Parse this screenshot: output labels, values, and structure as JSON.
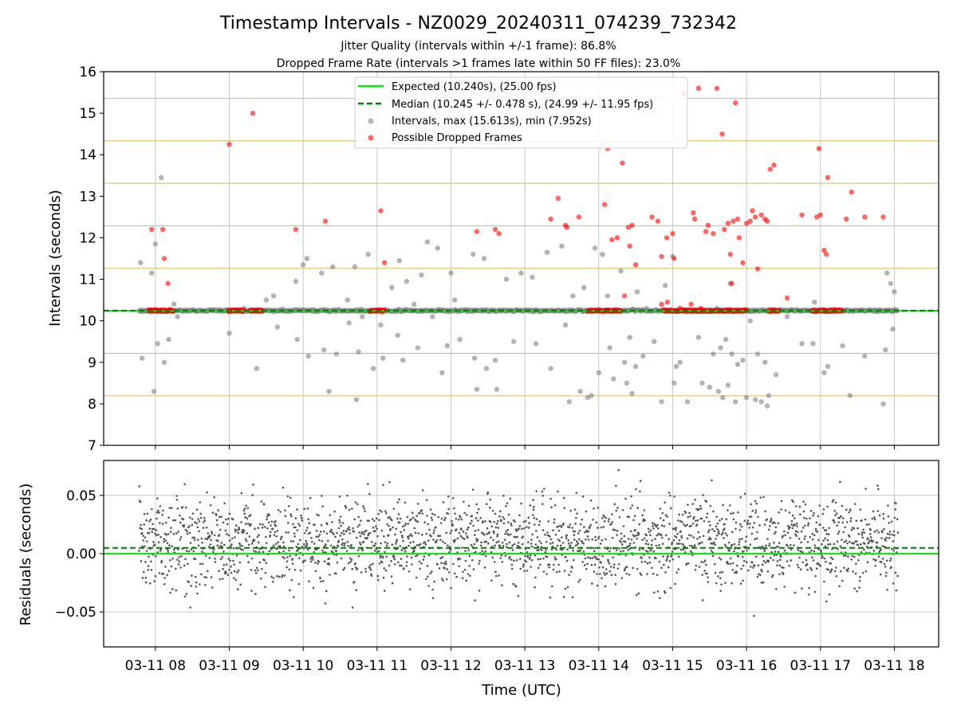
{
  "figure": {
    "title": "Timestamp Intervals - NZ0029_20240311_074239_732342",
    "subtitle_line1": "Jitter Quality (intervals within +/-1 frame): 86.8%",
    "subtitle_line2": "Dropped Frame Rate (intervals >1 frames late within 50 FF files): 23.0%"
  },
  "colors": {
    "expected_line": "#00ee00",
    "median_line": "#007f00",
    "interval_points": "#808080",
    "dropped_points": "#ff0000",
    "frame_lines": "#d4b86a",
    "residual_points": "#555555",
    "grid": "#c8c8c8"
  },
  "chart_data": [
    {
      "type": "scatter",
      "ylabel": "Intervals (seconds)",
      "ylim": [
        7,
        16
      ],
      "yticks": [
        7,
        8,
        9,
        10,
        11,
        12,
        13,
        14,
        15,
        16
      ],
      "xlim_hours": [
        7.3,
        18.6
      ],
      "xticks_hours": [
        8,
        9,
        10,
        11,
        12,
        13,
        14,
        15,
        16,
        17,
        18
      ],
      "xtick_labels": [
        "03-11 08",
        "03-11 09",
        "03-11 10",
        "03-11 11",
        "03-11 12",
        "03-11 13",
        "03-11 14",
        "03-11 15",
        "03-11 16",
        "03-11 17",
        "03-11 18"
      ],
      "frame_multiple_lines": [
        8.192,
        9.216,
        10.24,
        11.264,
        12.288,
        13.312,
        14.336,
        15.36
      ],
      "expected_value": 10.24,
      "median_value": 10.245,
      "legend_position": "upper-center",
      "legend": [
        "Expected (10.240s), (25.00 fps)",
        "Median (10.245 +/- 0.478 s), (24.99 +/- 11.95 fps)",
        "Intervals, max (15.613s), min (7.952s)",
        "Possible Dropped Frames"
      ],
      "intervals_range_hours": [
        7.78,
        18.05
      ],
      "dropped_clusters_hours": [
        [
          7.9,
          8.25
        ],
        [
          8.98,
          9.2
        ],
        [
          9.28,
          9.45
        ],
        [
          10.9,
          11.1
        ],
        [
          13.85,
          14.3
        ],
        [
          14.88,
          16.0
        ],
        [
          16.3,
          16.45
        ],
        [
          16.88,
          17.3
        ]
      ],
      "dropped_outliers": [
        [
          7.95,
          12.2
        ],
        [
          8.1,
          12.2
        ],
        [
          8.12,
          11.5
        ],
        [
          8.17,
          10.9
        ],
        [
          9.0,
          14.25
        ],
        [
          9.32,
          15.0
        ],
        [
          9.9,
          12.2
        ],
        [
          10.3,
          12.4
        ],
        [
          11.05,
          12.65
        ],
        [
          11.1,
          11.4
        ],
        [
          12.35,
          12.15
        ],
        [
          12.6,
          12.2
        ],
        [
          12.65,
          12.1
        ],
        [
          13.35,
          12.45
        ],
        [
          13.45,
          12.95
        ],
        [
          13.55,
          12.3
        ],
        [
          13.57,
          12.25
        ],
        [
          13.73,
          12.5
        ],
        [
          14.08,
          12.8
        ],
        [
          14.12,
          14.15
        ],
        [
          14.18,
          11.95
        ],
        [
          14.25,
          12.0
        ],
        [
          14.32,
          13.8
        ],
        [
          14.35,
          10.6
        ],
        [
          14.4,
          12.25
        ],
        [
          14.45,
          12.3
        ],
        [
          14.42,
          11.8
        ],
        [
          14.5,
          11.35
        ],
        [
          14.72,
          12.5
        ],
        [
          14.8,
          12.4
        ],
        [
          14.85,
          11.55
        ],
        [
          14.92,
          12.0
        ],
        [
          15.0,
          12.1
        ],
        [
          15.02,
          11.5
        ],
        [
          14.93,
          10.45
        ],
        [
          14.85,
          10.4
        ],
        [
          15.15,
          15.48
        ],
        [
          15.28,
          12.6
        ],
        [
          15.3,
          12.45
        ],
        [
          15.35,
          15.6
        ],
        [
          15.45,
          12.15
        ],
        [
          15.48,
          12.3
        ],
        [
          15.55,
          12.1
        ],
        [
          15.6,
          15.6
        ],
        [
          15.67,
          14.5
        ],
        [
          15.7,
          12.2
        ],
        [
          15.75,
          12.35
        ],
        [
          15.78,
          11.6
        ],
        [
          15.8,
          10.9
        ],
        [
          15.82,
          12.4
        ],
        [
          15.85,
          15.25
        ],
        [
          15.88,
          12.45
        ],
        [
          15.9,
          12.0
        ],
        [
          15.95,
          11.4
        ],
        [
          16.0,
          12.35
        ],
        [
          16.05,
          12.4
        ],
        [
          16.08,
          12.65
        ],
        [
          16.12,
          12.5
        ],
        [
          16.15,
          11.25
        ],
        [
          16.2,
          12.55
        ],
        [
          16.25,
          12.45
        ],
        [
          16.28,
          12.4
        ],
        [
          16.32,
          13.65
        ],
        [
          16.37,
          13.75
        ],
        [
          16.55,
          10.55
        ],
        [
          16.75,
          12.55
        ],
        [
          16.95,
          12.5
        ],
        [
          16.98,
          14.15
        ],
        [
          17.0,
          12.55
        ],
        [
          17.05,
          11.7
        ],
        [
          17.08,
          11.6
        ],
        [
          17.1,
          13.45
        ],
        [
          17.35,
          12.45
        ],
        [
          17.42,
          13.1
        ],
        [
          17.6,
          12.5
        ],
        [
          17.85,
          12.5
        ],
        [
          15.1,
          10.3
        ],
        [
          15.25,
          10.4
        ],
        [
          15.38,
          10.3
        ]
      ],
      "interval_outliers": [
        [
          7.8,
          11.4
        ],
        [
          7.82,
          9.1
        ],
        [
          7.95,
          11.15
        ],
        [
          7.98,
          8.3
        ],
        [
          8.0,
          11.85
        ],
        [
          8.03,
          9.45
        ],
        [
          8.08,
          13.45
        ],
        [
          8.12,
          9.0
        ],
        [
          8.18,
          9.55
        ],
        [
          8.25,
          10.4
        ],
        [
          8.3,
          10.1
        ],
        [
          9.0,
          9.7
        ],
        [
          9.2,
          10.3
        ],
        [
          9.5,
          10.5
        ],
        [
          9.6,
          10.6
        ],
        [
          9.65,
          9.85
        ],
        [
          9.37,
          8.85
        ],
        [
          9.9,
          10.95
        ],
        [
          9.92,
          9.55
        ],
        [
          10.0,
          11.35
        ],
        [
          10.05,
          11.5
        ],
        [
          10.07,
          9.15
        ],
        [
          10.25,
          11.15
        ],
        [
          10.28,
          9.3
        ],
        [
          10.35,
          8.3
        ],
        [
          10.4,
          11.3
        ],
        [
          10.45,
          9.2
        ],
        [
          10.6,
          10.5
        ],
        [
          10.62,
          9.95
        ],
        [
          10.7,
          11.3
        ],
        [
          10.72,
          8.1
        ],
        [
          10.75,
          9.25
        ],
        [
          10.8,
          10.1
        ],
        [
          10.88,
          11.6
        ],
        [
          10.95,
          8.85
        ],
        [
          11.05,
          9.9
        ],
        [
          11.08,
          9.1
        ],
        [
          11.2,
          10.8
        ],
        [
          11.3,
          11.45
        ],
        [
          11.35,
          9.05
        ],
        [
          11.28,
          9.65
        ],
        [
          11.4,
          10.95
        ],
        [
          11.5,
          10.4
        ],
        [
          11.55,
          9.35
        ],
        [
          11.6,
          11.1
        ],
        [
          11.68,
          11.9
        ],
        [
          11.75,
          10.1
        ],
        [
          11.82,
          11.75
        ],
        [
          11.88,
          8.75
        ],
        [
          11.95,
          9.4
        ],
        [
          12.0,
          11.15
        ],
        [
          12.05,
          10.5
        ],
        [
          12.12,
          9.55
        ],
        [
          12.3,
          11.6
        ],
        [
          12.32,
          9.1
        ],
        [
          12.35,
          8.35
        ],
        [
          12.45,
          11.5
        ],
        [
          12.48,
          8.85
        ],
        [
          12.6,
          9.05
        ],
        [
          12.62,
          8.35
        ],
        [
          12.75,
          11.0
        ],
        [
          12.85,
          9.5
        ],
        [
          12.95,
          11.15
        ],
        [
          13.1,
          11.05
        ],
        [
          13.15,
          9.45
        ],
        [
          13.3,
          11.65
        ],
        [
          13.35,
          8.85
        ],
        [
          13.5,
          11.8
        ],
        [
          13.55,
          9.9
        ],
        [
          13.6,
          8.05
        ],
        [
          13.65,
          10.6
        ],
        [
          13.75,
          8.3
        ],
        [
          13.8,
          10.8
        ],
        [
          13.85,
          8.15
        ],
        [
          13.9,
          8.2
        ],
        [
          13.95,
          11.75
        ],
        [
          14.0,
          8.75
        ],
        [
          14.05,
          11.6
        ],
        [
          14.12,
          10.6
        ],
        [
          14.15,
          9.35
        ],
        [
          14.2,
          8.6
        ],
        [
          14.3,
          11.2
        ],
        [
          14.35,
          9.0
        ],
        [
          14.38,
          8.5
        ],
        [
          14.42,
          9.6
        ],
        [
          14.45,
          8.25
        ],
        [
          14.5,
          8.9
        ],
        [
          14.52,
          10.7
        ],
        [
          14.6,
          9.15
        ],
        [
          14.65,
          10.3
        ],
        [
          14.75,
          9.5
        ],
        [
          14.85,
          8.05
        ],
        [
          14.9,
          10.85
        ],
        [
          15.0,
          11.55
        ],
        [
          15.02,
          8.5
        ],
        [
          15.05,
          8.9
        ],
        [
          15.1,
          9.0
        ],
        [
          15.2,
          8.05
        ],
        [
          15.3,
          10.25
        ],
        [
          15.35,
          9.6
        ],
        [
          15.4,
          8.5
        ],
        [
          15.5,
          8.4
        ],
        [
          15.55,
          9.2
        ],
        [
          15.6,
          10.3
        ],
        [
          15.62,
          8.3
        ],
        [
          15.65,
          9.35
        ],
        [
          15.68,
          8.15
        ],
        [
          15.72,
          9.55
        ],
        [
          15.75,
          8.45
        ],
        [
          15.78,
          10.9
        ],
        [
          15.8,
          9.2
        ],
        [
          15.85,
          8.05
        ],
        [
          15.88,
          8.95
        ],
        [
          15.95,
          9.05
        ],
        [
          16.0,
          8.15
        ],
        [
          16.05,
          10.0
        ],
        [
          16.12,
          8.1
        ],
        [
          16.15,
          9.2
        ],
        [
          16.2,
          8.05
        ],
        [
          16.25,
          9.0
        ],
        [
          16.28,
          7.95
        ],
        [
          16.3,
          8.2
        ],
        [
          16.4,
          8.7
        ],
        [
          16.55,
          10.1
        ],
        [
          16.75,
          9.45
        ],
        [
          16.9,
          9.45
        ],
        [
          16.92,
          10.45
        ],
        [
          17.05,
          8.75
        ],
        [
          17.1,
          8.9
        ],
        [
          17.3,
          9.4
        ],
        [
          17.4,
          8.2
        ],
        [
          17.6,
          9.15
        ],
        [
          17.85,
          8.0
        ],
        [
          17.88,
          9.3
        ],
        [
          17.9,
          11.15
        ],
        [
          17.95,
          10.9
        ],
        [
          17.98,
          9.8
        ],
        [
          18.0,
          10.7
        ]
      ]
    },
    {
      "type": "scatter",
      "ylabel": "Residuals (seconds)",
      "xlabel": "Time (UTC)",
      "ylim": [
        -0.08,
        0.08
      ],
      "yticks": [
        0.05,
        0.0,
        -0.05
      ],
      "ytick_labels": [
        "0.05",
        "0.00",
        "−0.05"
      ],
      "xlim_hours": [
        7.3,
        18.6
      ],
      "zero_line": 0.0,
      "median_offset": 0.005,
      "residual_band": [
        -0.04,
        0.06
      ],
      "residual_range_hours": [
        7.78,
        18.05
      ]
    }
  ]
}
